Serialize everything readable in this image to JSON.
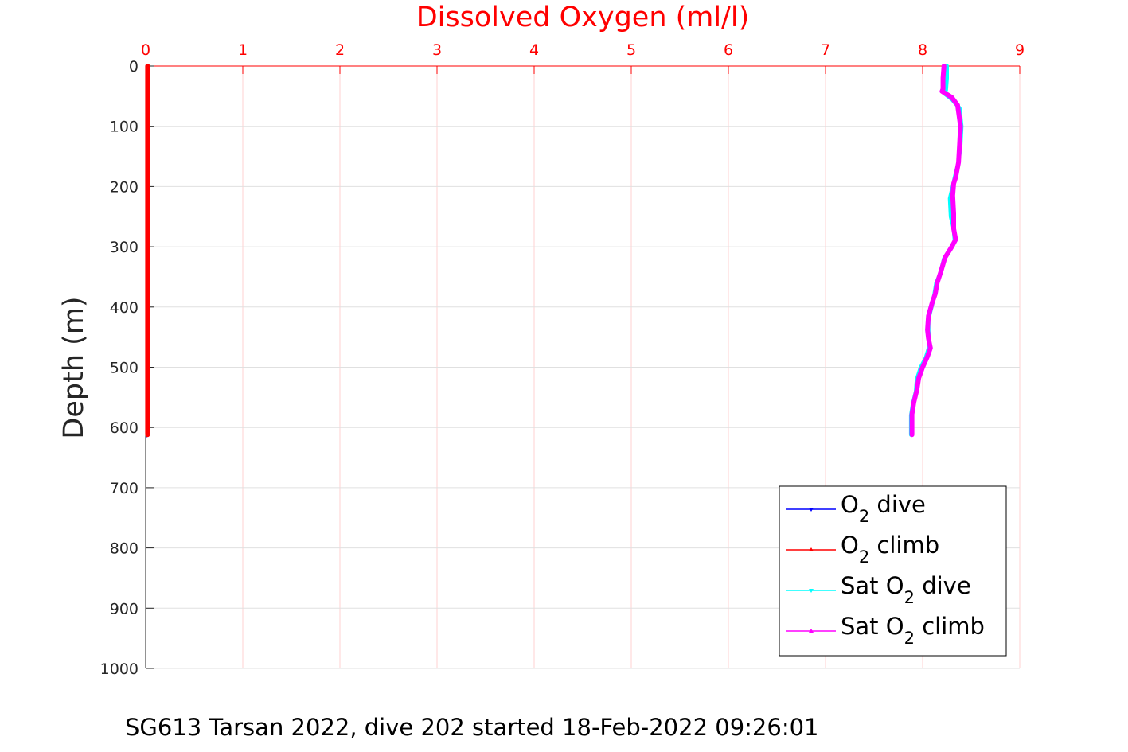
{
  "chart_data": {
    "type": "line",
    "xlabel": "Dissolved Oxygen (ml/l)",
    "ylabel": "Depth (m)",
    "xlim": [
      0,
      9
    ],
    "ylim": [
      0,
      1000
    ],
    "y_reversed": true,
    "x_axis_position": "top",
    "grid": true,
    "x_ticks": [
      "0",
      "1",
      "2",
      "3",
      "4",
      "5",
      "6",
      "7",
      "8",
      "9"
    ],
    "y_ticks": [
      "0",
      "100",
      "200",
      "300",
      "400",
      "500",
      "600",
      "700",
      "800",
      "900",
      "1000"
    ],
    "colors": {
      "x_axis": "#ff0000",
      "y_axis": "#262626",
      "grid": "#e0e0e0",
      "x_grid": "#ffd0d0"
    },
    "legend": {
      "position": "bottom-right",
      "entries": [
        {
          "pre": "O",
          "sub": "2",
          "post": " dive",
          "color": "#0000ff",
          "marker": "down-triangle"
        },
        {
          "pre": "O",
          "sub": "2",
          "post": " climb",
          "color": "#ff0000",
          "marker": "up-triangle"
        },
        {
          "pre": "Sat O",
          "sub": "2",
          "post": " dive",
          "color": "#00ffff",
          "marker": "down-triangle"
        },
        {
          "pre": "Sat O",
          "sub": "2",
          "post": " climb",
          "color": "#ff00ff",
          "marker": "up-triangle"
        }
      ]
    },
    "series": [
      {
        "name": "O2 dive",
        "color": "#0000ff",
        "width": 2,
        "x": [
          0.01,
          0.01,
          0.01,
          0.01
        ],
        "y": [
          0,
          200,
          400,
          615
        ]
      },
      {
        "name": "O2 climb",
        "color": "#ff0000",
        "width": 6,
        "x": [
          0.02,
          0.02,
          0.02,
          0.02
        ],
        "y": [
          0,
          200,
          400,
          612
        ]
      },
      {
        "name": "Sat O2 dive",
        "color": "#00ffff",
        "width": 5,
        "x": [
          8.25,
          8.25,
          8.24,
          8.22,
          8.3,
          8.38,
          8.4,
          8.39,
          8.37,
          8.33,
          8.31,
          8.28,
          8.29,
          8.32,
          8.33,
          8.3,
          8.22,
          8.18,
          8.14,
          8.12,
          8.1,
          8.06,
          8.06,
          8.07,
          8.06,
          8.03,
          7.98,
          7.94,
          7.93,
          7.9,
          7.88,
          7.88
        ],
        "y": [
          0,
          20,
          40,
          45,
          55,
          70,
          100,
          130,
          160,
          185,
          200,
          220,
          250,
          270,
          290,
          300,
          320,
          345,
          360,
          380,
          395,
          420,
          440,
          455,
          470,
          485,
          500,
          520,
          540,
          560,
          580,
          612
        ]
      },
      {
        "name": "Sat O2 climb",
        "color": "#ff00ff",
        "width": 6,
        "x": [
          8.22,
          8.21,
          8.21,
          8.2,
          8.3,
          8.36,
          8.39,
          8.38,
          8.37,
          8.34,
          8.32,
          8.31,
          8.32,
          8.32,
          8.34,
          8.3,
          8.23,
          8.19,
          8.15,
          8.13,
          8.1,
          8.06,
          8.05,
          8.06,
          8.08,
          8.05,
          8.0,
          7.96,
          7.94,
          7.91,
          7.89,
          7.89
        ],
        "y": [
          0,
          20,
          38,
          42,
          52,
          65,
          100,
          130,
          160,
          185,
          195,
          215,
          245,
          270,
          288,
          300,
          318,
          340,
          360,
          378,
          392,
          415,
          438,
          452,
          468,
          482,
          500,
          518,
          538,
          558,
          578,
          612
        ]
      }
    ]
  },
  "footer_text": "SG613 Tarsan 2022, dive 202 started 18-Feb-2022 09:26:01"
}
